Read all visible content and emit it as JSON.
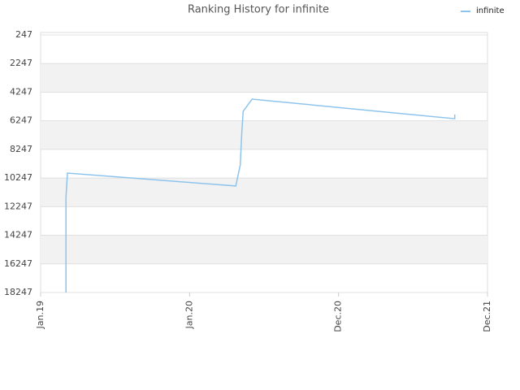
{
  "chart_data": {
    "type": "line",
    "title": "Ranking History for infinite",
    "x": [
      0.17,
      0.17,
      0.18,
      1.31,
      1.34,
      1.35,
      1.36,
      1.42,
      2.78,
      2.78
    ],
    "series": [
      {
        "name": "infinite",
        "color": "#8ec4ec",
        "values": [
          18247,
          11600,
          9900,
          10800,
          9330,
          7170,
          5580,
          4730,
          6100,
          5810
        ]
      }
    ],
    "xlim": [
      0,
      3
    ],
    "xticks": [
      {
        "value": 0,
        "label": "Jan.19"
      },
      {
        "value": 1,
        "label": "Jan.20"
      },
      {
        "value": 2,
        "label": "Dec.20"
      },
      {
        "value": 3,
        "label": "Dec.21"
      }
    ],
    "ylim": [
      18247,
      247
    ],
    "yticks": [
      247,
      2247,
      4247,
      6247,
      8247,
      10247,
      12247,
      14247,
      16247,
      18247
    ],
    "grid": true,
    "bands": true,
    "legend": "top-right"
  }
}
